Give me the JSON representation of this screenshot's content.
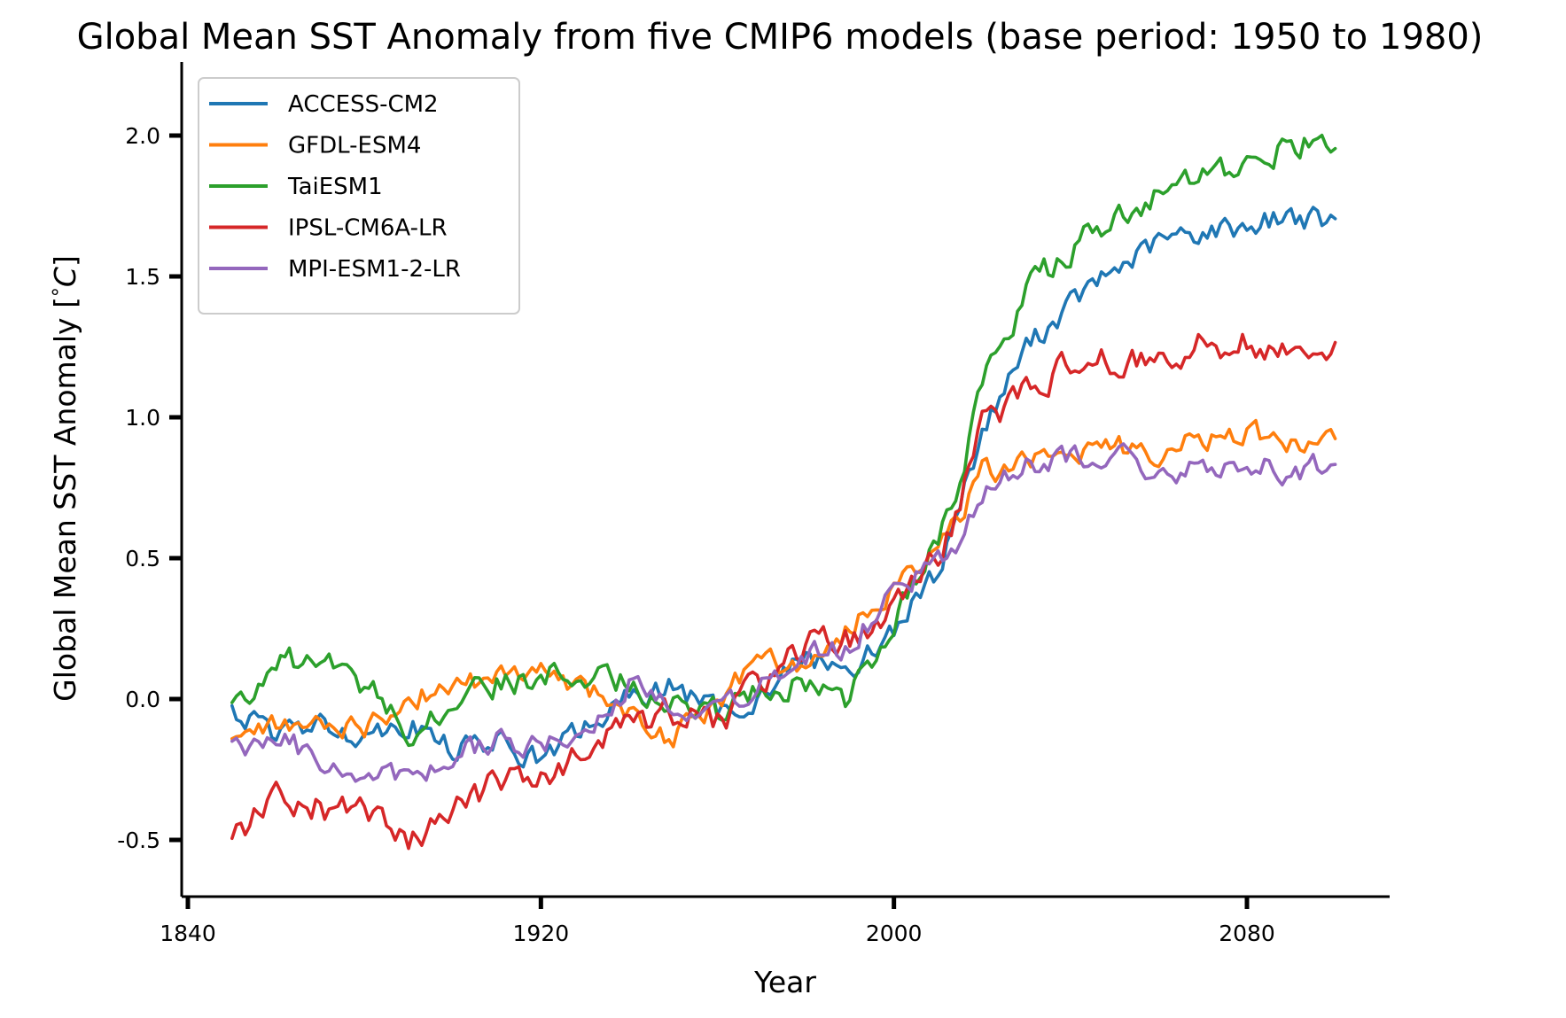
{
  "chart_data": {
    "type": "line",
    "title": "Global Mean SST Anomaly from five CMIP6 models (base period: 1950 to 1980)",
    "xlabel": "Year",
    "ylabel": "Global Mean SST Anomaly [$^\\circ C$]",
    "ylabel_parts": {
      "text": "Global Mean SST Anomaly [",
      "degree": "°",
      "unit": "C",
      "close": "]"
    },
    "xlim": [
      1840,
      2105
    ],
    "ylim": [
      -0.7,
      2.25
    ],
    "xticks": [
      1840,
      1920,
      2000,
      2080
    ],
    "xtick_labels": [
      "1840",
      "1920",
      "2000",
      "2080"
    ],
    "yticks": [
      -0.5,
      0.0,
      0.5,
      1.0,
      1.5,
      2.0
    ],
    "ytick_labels": [
      "-0.5",
      "0.0",
      "0.5",
      "1.0",
      "1.5",
      "2.0"
    ],
    "grid": false,
    "legend_position": "upper-left",
    "x_range": [
      1850,
      2100
    ],
    "series": [
      {
        "name": "ACCESS-CM2",
        "color": "#1f77b4",
        "x": [
          1850,
          1860,
          1870,
          1880,
          1890,
          1900,
          1910,
          1920,
          1930,
          1940,
          1950,
          1960,
          1970,
          1980,
          1990,
          2000,
          2010,
          2015,
          2020,
          2030,
          2040,
          2050,
          2060,
          2070,
          2080,
          2090,
          2100
        ],
        "y": [
          -0.05,
          -0.12,
          -0.1,
          -0.12,
          -0.08,
          -0.18,
          -0.15,
          -0.22,
          -0.1,
          0.0,
          0.05,
          -0.05,
          0.02,
          0.15,
          0.1,
          0.25,
          0.45,
          0.7,
          0.95,
          1.25,
          1.4,
          1.52,
          1.62,
          1.66,
          1.68,
          1.72,
          1.68
        ]
      },
      {
        "name": "GFDL-ESM4",
        "color": "#ff7f0e",
        "x": [
          1850,
          1860,
          1870,
          1880,
          1890,
          1900,
          1910,
          1920,
          1930,
          1940,
          1950,
          1960,
          1970,
          1980,
          1990,
          2000,
          2010,
          2015,
          2020,
          2030,
          2040,
          2050,
          2060,
          2070,
          2080,
          2090,
          2100
        ],
        "y": [
          -0.12,
          -0.1,
          -0.08,
          -0.1,
          0.0,
          0.05,
          0.08,
          0.1,
          0.05,
          -0.05,
          -0.15,
          0.0,
          0.15,
          0.1,
          0.25,
          0.4,
          0.55,
          0.65,
          0.8,
          0.85,
          0.88,
          0.9,
          0.88,
          0.92,
          0.95,
          0.9,
          0.92
        ]
      },
      {
        "name": "TaiESM1",
        "color": "#2ca02c",
        "x": [
          1850,
          1860,
          1870,
          1880,
          1890,
          1900,
          1910,
          1920,
          1930,
          1940,
          1950,
          1960,
          1970,
          1980,
          1990,
          2000,
          2010,
          2015,
          2020,
          2030,
          2040,
          2050,
          2060,
          2070,
          2080,
          2090,
          2100
        ],
        "y": [
          -0.02,
          0.12,
          0.14,
          0.05,
          -0.1,
          -0.02,
          0.05,
          0.08,
          0.1,
          0.05,
          0.0,
          -0.05,
          0.05,
          0.05,
          0.0,
          0.3,
          0.55,
          0.8,
          1.1,
          1.45,
          1.6,
          1.7,
          1.78,
          1.84,
          1.88,
          1.98,
          1.95
        ]
      },
      {
        "name": "IPSL-CM6A-LR",
        "color": "#d62728",
        "x": [
          1850,
          1860,
          1870,
          1880,
          1890,
          1900,
          1910,
          1920,
          1930,
          1940,
          1950,
          1960,
          1970,
          1980,
          1990,
          2000,
          2010,
          2015,
          2020,
          2030,
          2040,
          2050,
          2060,
          2070,
          2080,
          2090,
          2100
        ],
        "y": [
          -0.48,
          -0.35,
          -0.38,
          -0.42,
          -0.52,
          -0.4,
          -0.3,
          -0.28,
          -0.2,
          -0.1,
          -0.05,
          -0.08,
          0.05,
          0.2,
          0.2,
          0.35,
          0.5,
          0.7,
          0.98,
          1.1,
          1.18,
          1.2,
          1.22,
          1.25,
          1.28,
          1.22,
          1.25
        ]
      },
      {
        "name": "MPI-ESM1-2-LR",
        "color": "#9467bd",
        "x": [
          1850,
          1860,
          1870,
          1880,
          1890,
          1900,
          1910,
          1920,
          1930,
          1940,
          1950,
          1960,
          1970,
          1980,
          1990,
          2000,
          2010,
          2015,
          2020,
          2030,
          2040,
          2050,
          2060,
          2070,
          2080,
          2090,
          2100
        ],
        "y": [
          -0.18,
          -0.12,
          -0.22,
          -0.25,
          -0.28,
          -0.2,
          -0.15,
          -0.18,
          -0.12,
          0.05,
          0.0,
          -0.05,
          0.05,
          0.15,
          0.2,
          0.38,
          0.5,
          0.58,
          0.72,
          0.82,
          0.85,
          0.88,
          0.8,
          0.82,
          0.85,
          0.8,
          0.85
        ]
      }
    ]
  }
}
